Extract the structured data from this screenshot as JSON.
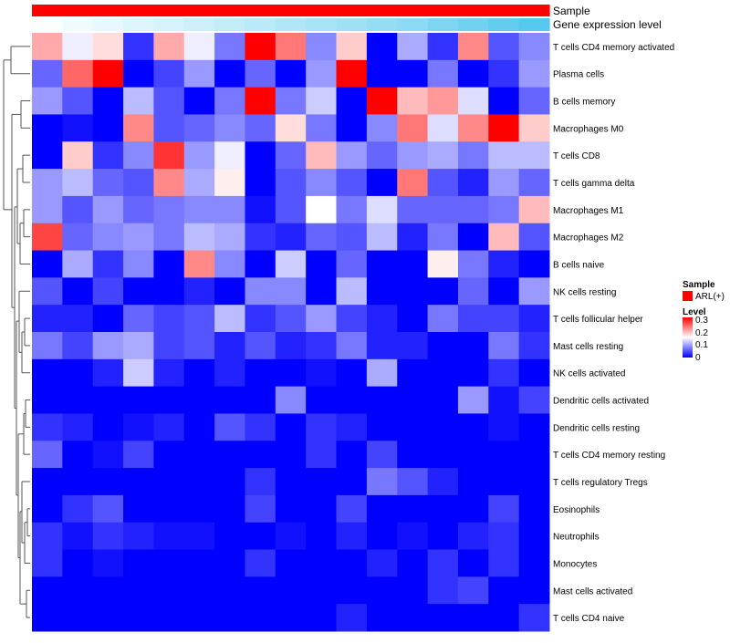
{
  "chart_data": {
    "type": "heatmap",
    "annotation_tracks": [
      {
        "name": "Sample",
        "values": [
          "ARL(+)",
          "ARL(+)",
          "ARL(+)",
          "ARL(+)",
          "ARL(+)",
          "ARL(+)",
          "ARL(+)",
          "ARL(+)",
          "ARL(+)",
          "ARL(+)",
          "ARL(+)",
          "ARL(+)",
          "ARL(+)",
          "ARL(+)",
          "ARL(+)",
          "ARL(+)",
          "ARL(+)"
        ]
      },
      {
        "name": "Gene expression level",
        "values": [
          0.02,
          0.06,
          0.1,
          0.14,
          0.18,
          0.22,
          0.26,
          0.3,
          0.34,
          0.38,
          0.42,
          0.46,
          0.5,
          0.56,
          0.62,
          0.68,
          0.74
        ]
      }
    ],
    "rows": [
      "T cells CD4 memory activated",
      "Plasma cells",
      "B cells memory",
      "Macrophages M0",
      "T cells CD8",
      "T cells gamma delta",
      "Macrophages M1",
      "Macrophages M2",
      "B cells naive",
      "NK cells resting",
      "T cells follicular helper",
      "Mast cells resting",
      "NK cells activated",
      "Dendritic cells activated",
      "Dendritic cells resting",
      "T cells CD4 memory resting",
      "T cells regulatory  Tregs",
      "Eosinophils",
      "Neutrophils",
      "Monocytes",
      "Mast cells activated",
      "T cells CD4 naive"
    ],
    "n_columns": 17,
    "values": [
      [
        0.2,
        0.14,
        0.17,
        0.03,
        0.2,
        0.14,
        0.07,
        0.31,
        0.23,
        0.08,
        0.18,
        0.0,
        0.1,
        0.03,
        0.22,
        0.05,
        0.08
      ],
      [
        0.06,
        0.24,
        0.3,
        0.0,
        0.04,
        0.09,
        0.0,
        0.06,
        0.0,
        0.09,
        0.3,
        0.0,
        0.0,
        0.07,
        0.0,
        0.03,
        0.09
      ],
      [
        0.09,
        0.05,
        0.0,
        0.11,
        0.05,
        0.0,
        0.07,
        0.3,
        0.07,
        0.12,
        0.0,
        0.3,
        0.19,
        0.21,
        0.13,
        0.0,
        0.06
      ],
      [
        0.0,
        0.01,
        0.0,
        0.22,
        0.05,
        0.06,
        0.08,
        0.06,
        0.17,
        0.07,
        0.0,
        0.08,
        0.23,
        0.13,
        0.22,
        0.3,
        0.18
      ],
      [
        0.0,
        0.18,
        0.03,
        0.08,
        0.27,
        0.09,
        0.14,
        0.0,
        0.06,
        0.19,
        0.09,
        0.06,
        0.09,
        0.1,
        0.07,
        0.11,
        0.11
      ],
      [
        0.09,
        0.11,
        0.06,
        0.05,
        0.22,
        0.1,
        0.16,
        0.0,
        0.05,
        0.08,
        0.05,
        0.0,
        0.23,
        0.05,
        0.02,
        0.09,
        0.06
      ],
      [
        0.09,
        0.05,
        0.09,
        0.06,
        0.07,
        0.08,
        0.08,
        0.01,
        0.05,
        0.15,
        0.07,
        0.13,
        0.06,
        0.06,
        0.06,
        0.07,
        0.19
      ],
      [
        0.26,
        0.06,
        0.08,
        0.09,
        0.07,
        0.11,
        0.1,
        0.03,
        0.02,
        0.06,
        0.05,
        0.11,
        0.02,
        0.07,
        0.0,
        0.19,
        0.05
      ],
      [
        0.0,
        0.1,
        0.03,
        0.08,
        0.0,
        0.22,
        0.08,
        0.0,
        0.12,
        0.0,
        0.06,
        0.0,
        0.0,
        0.16,
        0.07,
        0.02,
        0.0
      ],
      [
        0.05,
        0.0,
        0.04,
        0.0,
        0.0,
        0.02,
        0.0,
        0.08,
        0.08,
        0.0,
        0.11,
        0.0,
        0.0,
        0.0,
        0.06,
        0.0,
        0.09
      ],
      [
        0.02,
        0.02,
        0.0,
        0.06,
        0.04,
        0.05,
        0.11,
        0.03,
        0.05,
        0.09,
        0.04,
        0.02,
        0.0,
        0.07,
        0.04,
        0.04,
        0.02
      ],
      [
        0.07,
        0.04,
        0.09,
        0.1,
        0.04,
        0.05,
        0.02,
        0.05,
        0.02,
        0.03,
        0.07,
        0.02,
        0.02,
        0.0,
        0.0,
        0.07,
        0.03
      ],
      [
        0.0,
        0.0,
        0.02,
        0.12,
        0.02,
        0.0,
        0.02,
        0.0,
        0.0,
        0.01,
        0.0,
        0.1,
        0.0,
        0.0,
        0.0,
        0.03,
        0.0
      ],
      [
        0.0,
        0.0,
        0.0,
        0.0,
        0.0,
        0.0,
        0.0,
        0.0,
        0.08,
        0.0,
        0.0,
        0.0,
        0.0,
        0.0,
        0.09,
        0.01,
        0.04
      ],
      [
        0.03,
        0.02,
        0.0,
        0.01,
        0.02,
        0.0,
        0.05,
        0.03,
        0.0,
        0.03,
        0.02,
        0.0,
        0.0,
        0.0,
        0.0,
        0.01,
        0.0
      ],
      [
        0.06,
        0.0,
        0.01,
        0.04,
        0.0,
        0.0,
        0.0,
        0.0,
        0.0,
        0.03,
        0.0,
        0.04,
        0.0,
        0.0,
        0.0,
        0.0,
        0.0
      ],
      [
        0.0,
        0.0,
        0.0,
        0.0,
        0.0,
        0.0,
        0.0,
        0.03,
        0.0,
        0.0,
        0.0,
        0.07,
        0.05,
        0.02,
        0.0,
        0.0,
        0.0
      ],
      [
        0.0,
        0.03,
        0.05,
        0.0,
        0.0,
        0.0,
        0.0,
        0.04,
        0.0,
        0.0,
        0.04,
        0.0,
        0.0,
        0.0,
        0.0,
        0.04,
        0.0
      ],
      [
        0.03,
        0.01,
        0.03,
        0.02,
        0.01,
        0.01,
        0.0,
        0.0,
        0.01,
        0.0,
        0.02,
        0.0,
        0.01,
        0.0,
        0.02,
        0.03,
        0.0
      ],
      [
        0.03,
        0.0,
        0.01,
        0.0,
        0.0,
        0.0,
        0.0,
        0.03,
        0.0,
        0.0,
        0.0,
        0.02,
        0.0,
        0.03,
        0.0,
        0.03,
        0.0
      ],
      [
        0.0,
        0.0,
        0.0,
        0.0,
        0.0,
        0.0,
        0.0,
        0.0,
        0.0,
        0.0,
        0.0,
        0.0,
        0.0,
        0.03,
        0.04,
        0.0,
        0.0
      ],
      [
        0.0,
        0.0,
        0.0,
        0.0,
        0.0,
        0.0,
        0.0,
        0.0,
        0.0,
        0.0,
        0.02,
        0.0,
        0.0,
        0.0,
        0.0,
        0.0,
        0.03
      ]
    ],
    "color_scale": {
      "min": 0,
      "max": 0.3,
      "low_color": "#0000ff",
      "mid_color": "#ffffff",
      "high_color": "#ff0000"
    },
    "legend": {
      "sample_title": "Sample",
      "sample_entry": "ARL(+)",
      "sample_color": "#ff0000",
      "level_title": "Level",
      "level_ticks": [
        "0.3",
        "0.2",
        "0.1",
        "0"
      ]
    },
    "annotation_colors": {
      "gene_low": "#ffffff",
      "gene_high": "#55c8ee"
    },
    "dendrogram": "row-clustering tree on left"
  }
}
